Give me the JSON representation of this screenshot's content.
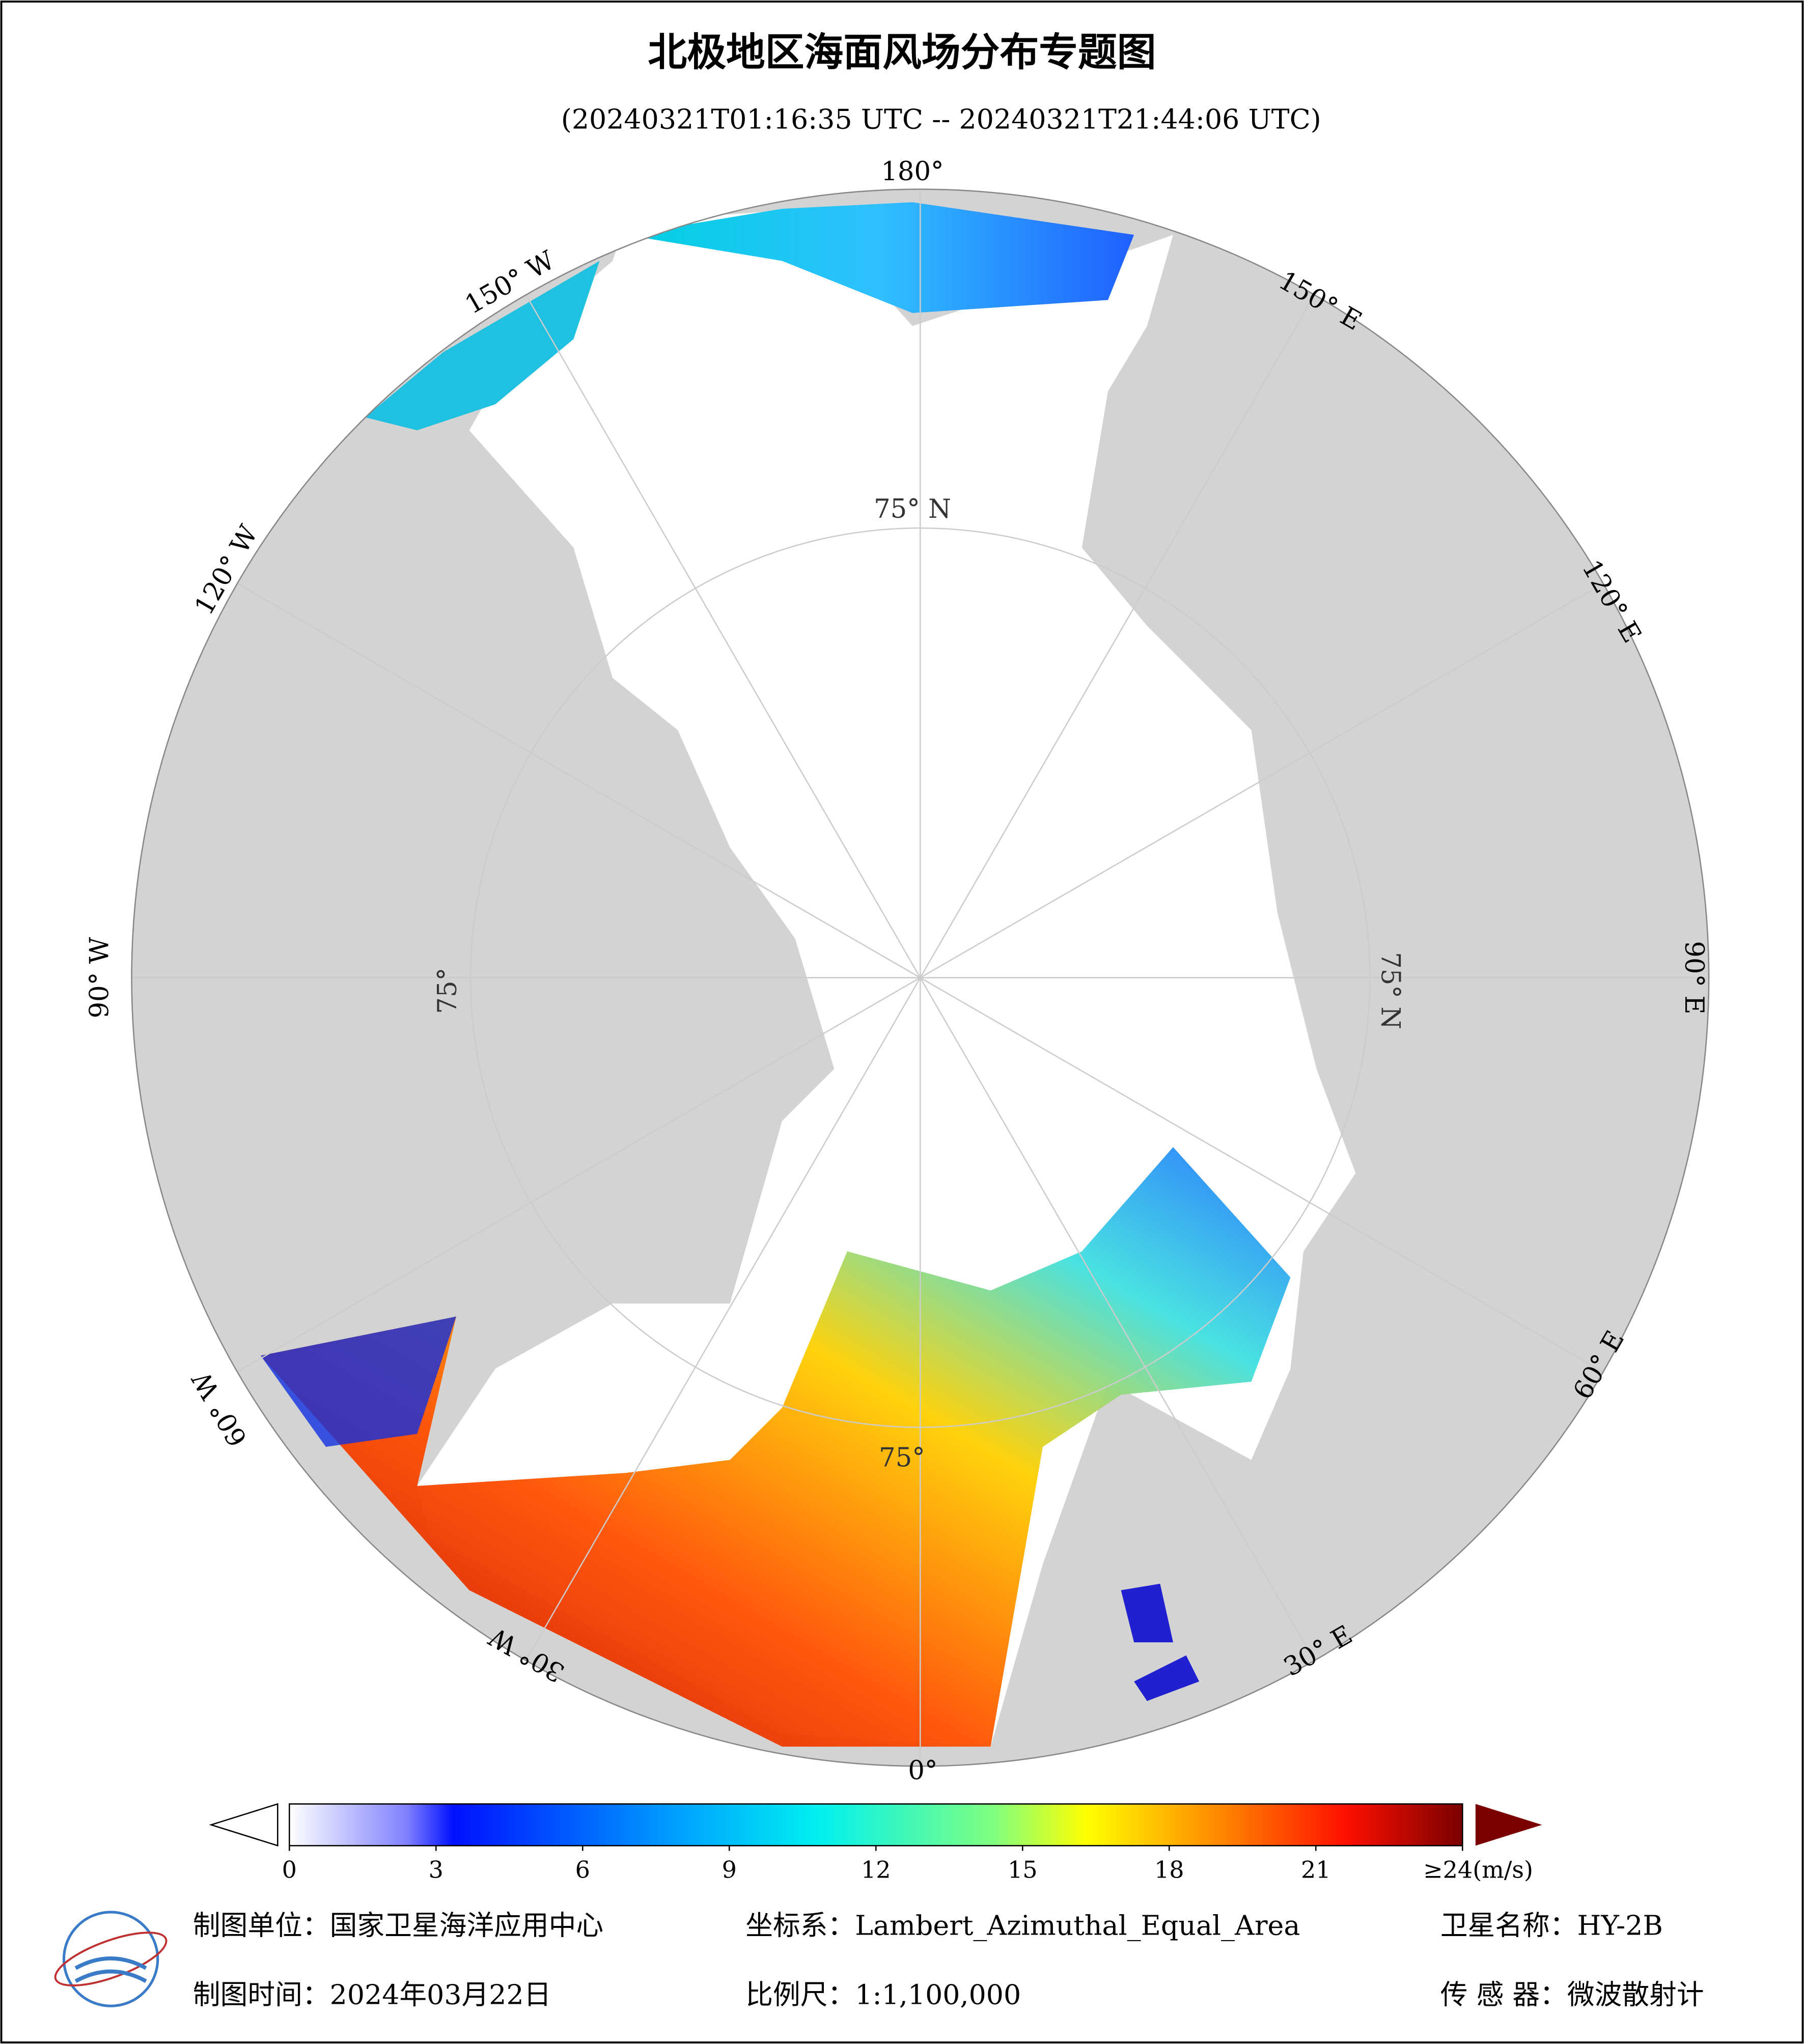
{
  "header": {
    "title": "北极地区海面风场分布专题图",
    "subtitle": "(20240321T01:16:35 UTC -- 20240321T21:44:06 UTC)"
  },
  "map": {
    "lon_labels": [
      "180°",
      "150° E",
      "120° E",
      "90° E",
      "60° E",
      "30° E",
      "0°",
      "30° W",
      "60° W",
      "90° W",
      "120° W",
      "150° W"
    ],
    "lat_labels": [
      "75° N",
      "75° N",
      "75°",
      "75°"
    ]
  },
  "colorbar": {
    "lim": [
      0,
      24
    ],
    "ticks": [
      0,
      3,
      6,
      9,
      12,
      15,
      18,
      21,
      {
        "value": 24,
        "label": "≥24(m/s)"
      }
    ]
  },
  "footer": {
    "unit": "制图单位：国家卫星海洋应用中心",
    "crs": "坐标系：Lambert_Azimuthal_Equal_Area",
    "satellite": "卫星名称：HY-2B",
    "date": "制图时间：2024年03月22日",
    "scale": "比例尺：1:1,100,000",
    "sensor": "传 感 器：微波散射计"
  }
}
